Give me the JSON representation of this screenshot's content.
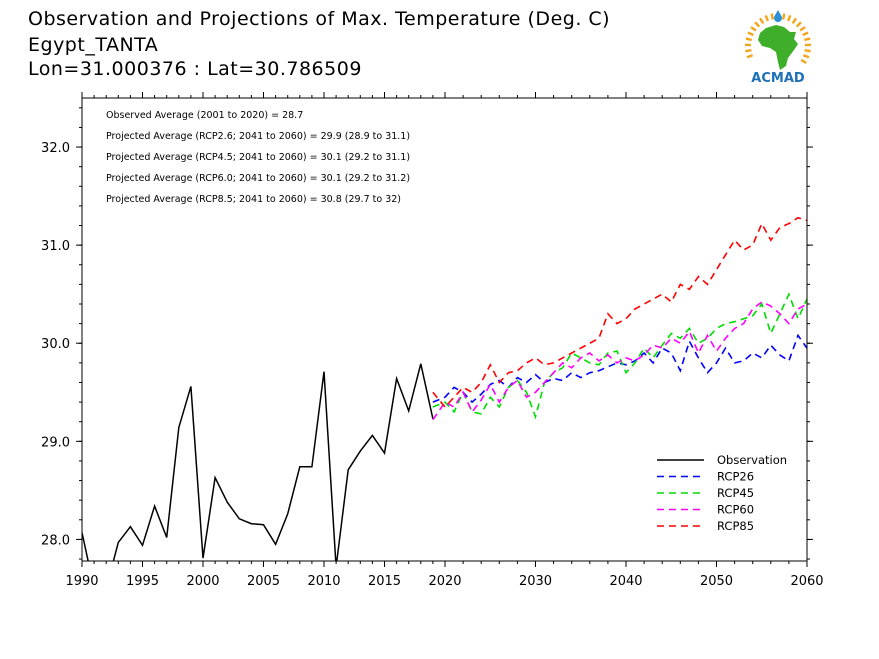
{
  "header": {
    "title": "Observation and Projections of Max. Temperature (Deg. C)",
    "location": "Egypt_TANTA",
    "coords": "Lon=31.000376 : Lat=30.786509"
  },
  "logo": {
    "text": "ACMAD",
    "colors": {
      "africa": "#3fae2a",
      "rays": "#f2a51a",
      "text": "#1d6fb8",
      "drop": "#2a8fd6"
    }
  },
  "chart_data": {
    "type": "line",
    "xlim": [
      1990,
      2060
    ],
    "ylim": [
      27.78,
      32.5
    ],
    "x_ticks": [
      1990,
      1995,
      2000,
      2005,
      2010,
      2015,
      2020,
      2030,
      2040,
      2050,
      2060
    ],
    "x_tick_labels": [
      "1990",
      "1995",
      "2000",
      "2005",
      "2010",
      "2015",
      "2020",
      "2030",
      "2040",
      "2050",
      "2060"
    ],
    "y_ticks": [
      28.0,
      29.0,
      30.0,
      31.0,
      32.0
    ],
    "y_tick_labels": [
      "28.0",
      "29.0",
      "30.0",
      "31.0",
      "32.0"
    ],
    "x_axis_breaks": {
      "early": [
        1990,
        2020
      ],
      "late": [
        2020,
        2060
      ]
    },
    "annotations": [
      "Observed Average (2001 to 2020) = 28.7",
      "Projected Average (RCP2.6; 2041 to 2060) = 29.9 (28.9 to 31.1)",
      "Projected Average (RCP4.5; 2041 to 2060) = 30.1 (29.2 to 31.1)",
      "Projected Average (RCP6.0; 2041 to 2060) = 30.1 (29.2 to 31.2)",
      "Projected Average (RCP8.5; 2041 to 2060) = 30.8 (29.7 to 32)"
    ],
    "legend_position": "bottom-right",
    "series": [
      {
        "name": "Observation",
        "color": "#000000",
        "dashed": false,
        "x": [
          1990,
          1991,
          1992,
          1993,
          1994,
          1995,
          1996,
          1997,
          1998,
          1999,
          2000,
          2001,
          2002,
          2003,
          2004,
          2005,
          2006,
          2007,
          2008,
          2009,
          2010,
          2011,
          2012,
          2013,
          2014,
          2015,
          2016,
          2017,
          2018,
          2019
        ],
        "y": [
          28.07,
          27.5,
          27.5,
          27.97,
          28.13,
          27.94,
          28.34,
          28.02,
          29.14,
          29.56,
          27.81,
          28.63,
          28.38,
          28.21,
          28.16,
          28.15,
          27.95,
          28.26,
          28.74,
          28.74,
          29.71,
          27.72,
          28.71,
          28.9,
          29.06,
          28.88,
          29.64,
          29.31,
          29.79,
          29.23
        ]
      },
      {
        "name": "RCP26",
        "color": "#0000ff",
        "dashed": true,
        "x": [
          2019,
          2020,
          2021,
          2022,
          2023,
          2024,
          2025,
          2026,
          2027,
          2028,
          2029,
          2030,
          2031,
          2032,
          2033,
          2034,
          2035,
          2036,
          2037,
          2038,
          2039,
          2040,
          2041,
          2042,
          2043,
          2044,
          2045,
          2046,
          2047,
          2048,
          2049,
          2050,
          2051,
          2052,
          2053,
          2054,
          2055,
          2056,
          2057,
          2058,
          2059,
          2060
        ],
        "y": [
          29.4,
          29.45,
          29.55,
          29.5,
          29.4,
          29.48,
          29.58,
          29.62,
          29.55,
          29.65,
          29.6,
          29.68,
          29.6,
          29.64,
          29.62,
          29.7,
          29.65,
          29.7,
          29.72,
          29.76,
          29.8,
          29.78,
          29.82,
          29.9,
          29.8,
          29.95,
          29.9,
          29.72,
          30.02,
          29.85,
          29.7,
          29.8,
          29.95,
          29.8,
          29.82,
          29.9,
          29.85,
          29.98,
          29.88,
          29.82,
          30.08,
          29.95
        ]
      },
      {
        "name": "RCP45",
        "color": "#00dd00",
        "dashed": true,
        "x": [
          2019,
          2020,
          2021,
          2022,
          2023,
          2024,
          2025,
          2026,
          2027,
          2028,
          2029,
          2030,
          2031,
          2032,
          2033,
          2034,
          2035,
          2036,
          2037,
          2038,
          2039,
          2040,
          2041,
          2042,
          2043,
          2044,
          2045,
          2046,
          2047,
          2048,
          2049,
          2050,
          2051,
          2052,
          2053,
          2054,
          2055,
          2056,
          2057,
          2058,
          2059,
          2060
        ],
        "y": [
          29.35,
          29.4,
          29.3,
          29.5,
          29.3,
          29.28,
          29.45,
          29.35,
          29.55,
          29.62,
          29.5,
          29.25,
          29.6,
          29.7,
          29.75,
          29.9,
          29.85,
          29.8,
          29.78,
          29.9,
          29.92,
          29.7,
          29.8,
          29.95,
          29.85,
          29.98,
          30.1,
          30.05,
          30.15,
          30.0,
          30.05,
          30.15,
          30.2,
          30.22,
          30.25,
          30.28,
          30.4,
          30.1,
          30.3,
          30.5,
          30.25,
          30.45
        ]
      },
      {
        "name": "RCP60",
        "color": "#ff00ff",
        "dashed": true,
        "x": [
          2019,
          2020,
          2021,
          2022,
          2023,
          2024,
          2025,
          2026,
          2027,
          2028,
          2029,
          2030,
          2031,
          2032,
          2033,
          2034,
          2035,
          2036,
          2037,
          2038,
          2039,
          2040,
          2041,
          2042,
          2043,
          2044,
          2045,
          2046,
          2047,
          2048,
          2049,
          2050,
          2051,
          2052,
          2053,
          2054,
          2055,
          2056,
          2057,
          2058,
          2059,
          2060
        ],
        "y": [
          29.22,
          29.4,
          29.35,
          29.5,
          29.3,
          29.42,
          29.58,
          29.4,
          29.55,
          29.62,
          29.45,
          29.5,
          29.6,
          29.7,
          29.8,
          29.75,
          29.85,
          29.9,
          29.82,
          29.88,
          29.8,
          29.85,
          29.82,
          29.88,
          29.98,
          29.95,
          30.05,
          30.0,
          30.12,
          29.9,
          30.08,
          29.92,
          30.05,
          30.15,
          30.2,
          30.35,
          30.42,
          30.38,
          30.3,
          30.2,
          30.35,
          30.4
        ]
      },
      {
        "name": "RCP85",
        "color": "#ff0000",
        "dashed": true,
        "x": [
          2019,
          2020,
          2021,
          2022,
          2023,
          2024,
          2025,
          2026,
          2027,
          2028,
          2029,
          2030,
          2031,
          2032,
          2033,
          2034,
          2035,
          2036,
          2037,
          2038,
          2039,
          2040,
          2041,
          2042,
          2043,
          2044,
          2045,
          2046,
          2047,
          2048,
          2049,
          2050,
          2051,
          2052,
          2053,
          2054,
          2055,
          2056,
          2057,
          2058,
          2059,
          2060
        ],
        "y": [
          29.5,
          29.35,
          29.45,
          29.55,
          29.5,
          29.6,
          29.78,
          29.6,
          29.7,
          29.72,
          29.8,
          29.85,
          29.78,
          29.8,
          29.85,
          29.9,
          29.95,
          30.0,
          30.05,
          30.3,
          30.2,
          30.25,
          30.35,
          30.4,
          30.45,
          30.5,
          30.42,
          30.6,
          30.55,
          30.68,
          30.6,
          30.75,
          30.9,
          31.05,
          30.95,
          31.0,
          31.22,
          31.05,
          31.18,
          31.22,
          31.28,
          31.25
        ]
      }
    ]
  }
}
